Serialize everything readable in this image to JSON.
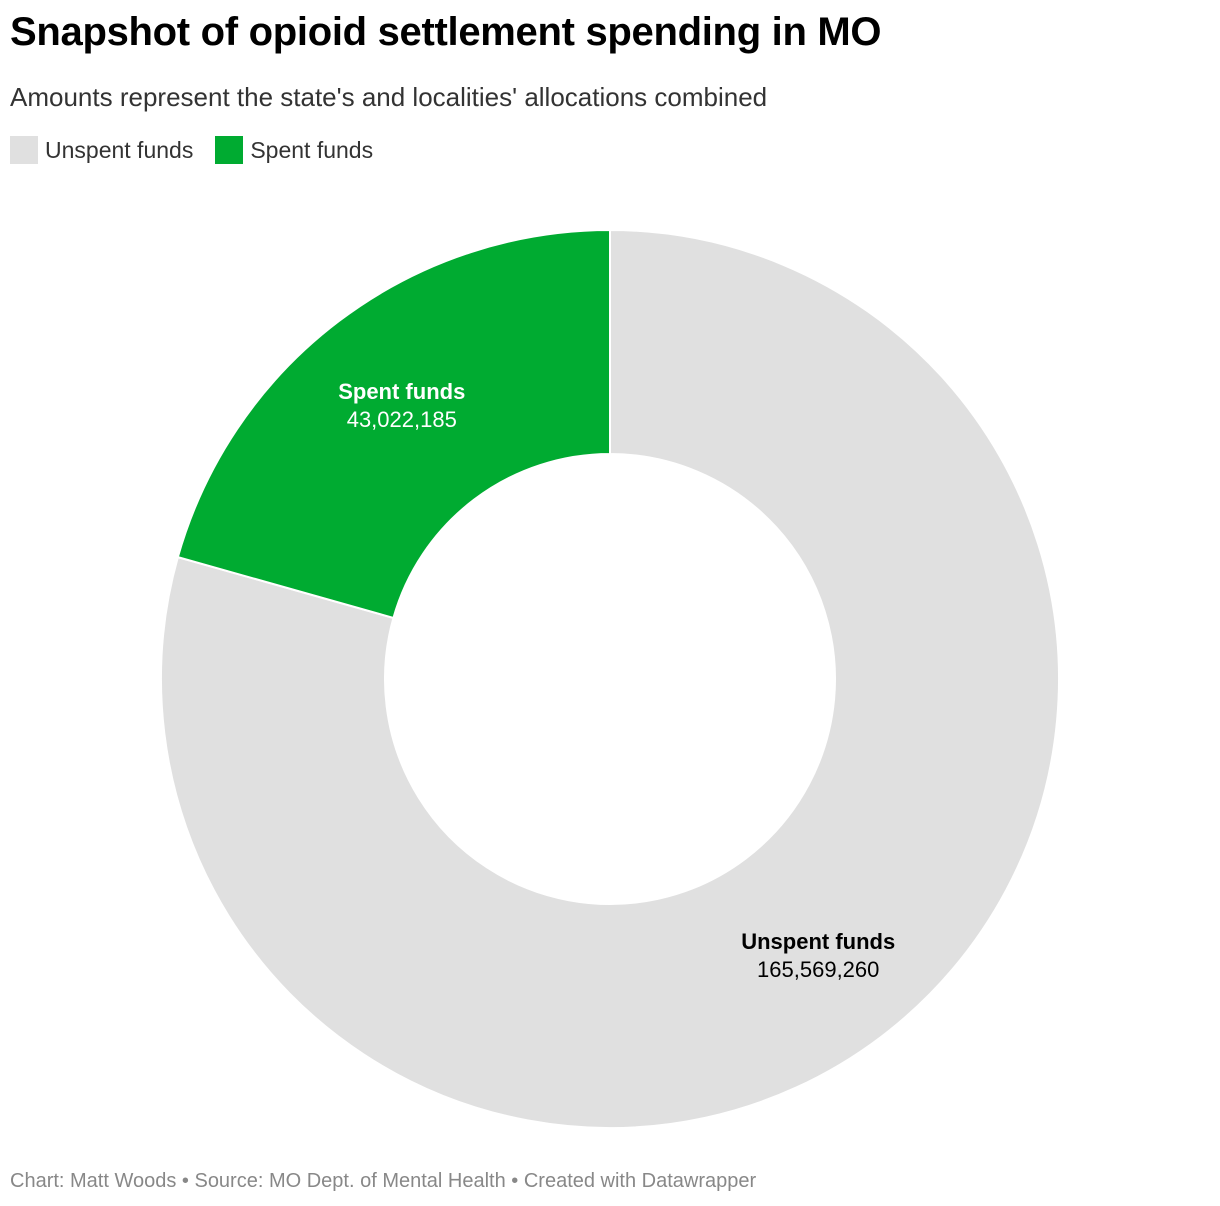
{
  "title": "Snapshot of opioid settlement spending in MO",
  "subtitle": "Amounts represent the state's and localities' allocations combined",
  "legend": [
    {
      "label": "Unspent funds",
      "color": "#e0e0e0"
    },
    {
      "label": "Spent funds",
      "color": "#00ab31"
    }
  ],
  "chart_data": {
    "type": "pie",
    "variant": "donut",
    "title": "Snapshot of opioid settlement spending in MO",
    "subtitle": "Amounts represent the state's and localities' allocations combined",
    "slices": [
      {
        "label": "Unspent funds",
        "value": 165569260,
        "value_label": "165,569,260",
        "color": "#e0e0e0",
        "label_color": "#000000"
      },
      {
        "label": "Spent funds",
        "value": 43022185,
        "value_label": "43,022,185",
        "color": "#00ab31",
        "label_color": "#ffffff"
      }
    ],
    "start_angle_deg": 0,
    "direction": "clockwise",
    "legend_position": "top-left"
  },
  "footer": {
    "text": "Chart: Matt Woods • Source: MO Dept. of Mental Health • Created with Datawrapper"
  }
}
